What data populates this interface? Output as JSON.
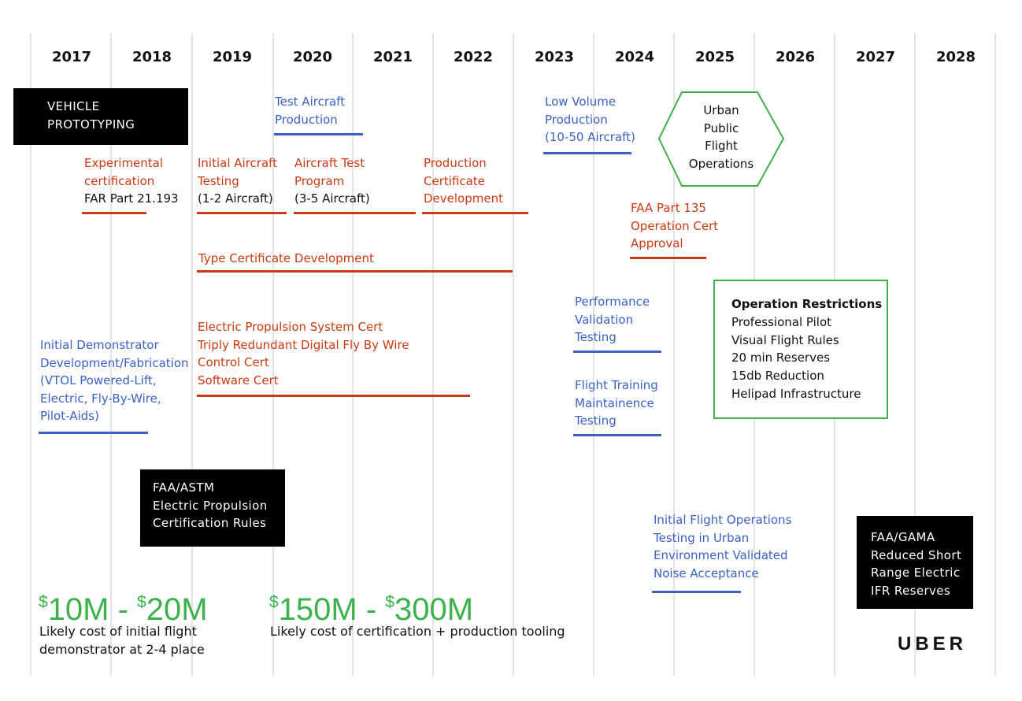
{
  "years": [
    "2017",
    "2018",
    "2019",
    "2020",
    "2021",
    "2022",
    "2023",
    "2024",
    "2025",
    "2026",
    "2027",
    "2028"
  ],
  "vehicle_prototyping": {
    "lines": [
      "VEHICLE",
      "PROTOTYPING"
    ]
  },
  "test_aircraft_production": {
    "lines": [
      "Test Aircraft",
      "Production"
    ]
  },
  "low_volume_production": {
    "lines": [
      "Low Volume",
      "Production",
      "(10-50 Aircraft)"
    ]
  },
  "urban_public_flight": {
    "lines": [
      "Urban",
      "Public",
      "Flight",
      "Operations"
    ]
  },
  "experimental_cert": {
    "lines": [
      "Experimental",
      "certification"
    ],
    "sub": "FAR Part 21.193"
  },
  "initial_aircraft_testing": {
    "lines": [
      "Initial Aircraft",
      "Testing"
    ],
    "sub": "(1-2 Aircraft)"
  },
  "aircraft_test_program": {
    "lines": [
      "Aircraft Test",
      "Program"
    ],
    "sub": "(3-5 Aircraft)"
  },
  "production_cert_dev": {
    "lines": [
      "Production",
      "Certificate",
      "Development"
    ]
  },
  "faa_part_135": {
    "lines": [
      "FAA Part 135",
      "Operation Cert",
      "Approval"
    ]
  },
  "type_cert_dev": {
    "label": "Type Certificate Development"
  },
  "performance_validation": {
    "lines": [
      "Performance",
      "Validation",
      "Testing"
    ]
  },
  "operation_restrictions": {
    "title": "Operation Restrictions",
    "items": [
      "Professional Pilot",
      "Visual Flight Rules",
      "20 min Reserves",
      "15db Reduction",
      "Helipad Infrastructure"
    ]
  },
  "electric_propulsion_cert": {
    "lines": [
      "Electric Propulsion System Cert",
      "Triply Redundant Digital Fly By Wire",
      "Control Cert",
      "Software Cert"
    ]
  },
  "initial_demonstrator": {
    "lines": [
      "Initial Demonstrator",
      "Development/Fabrication",
      "(VTOL Powered-Lift,",
      "Electric, Fly-By-Wire,",
      "Pilot-Aids)"
    ]
  },
  "flight_training": {
    "lines": [
      "Flight Training",
      "Maintainence",
      "Testing"
    ]
  },
  "faa_astm": {
    "lines": [
      "FAA/ASTM",
      "Electric Propulsion",
      "Certification Rules"
    ]
  },
  "initial_flight_ops": {
    "lines": [
      "Initial Flight Operations",
      "Testing in Urban",
      "Environment Validated",
      "Noise Acceptance"
    ]
  },
  "faa_gama": {
    "lines": [
      "FAA/GAMA",
      "Reduced Short",
      "Range Electric",
      "IFR Reserves"
    ]
  },
  "cost_demonstrator": {
    "currency": "$",
    "low": "10M",
    "sep": " - ",
    "high": "20M",
    "desc": [
      "Likely cost of initial flight",
      "demonstrator at 2-4 place"
    ]
  },
  "cost_certification": {
    "currency": "$",
    "low": "150M",
    "sep": " - ",
    "high": "300M",
    "desc": [
      "Likely cost of certification + production tooling"
    ]
  },
  "logo": "UBER",
  "colors": {
    "red": "#cc3a12",
    "blue": "#3b61c4",
    "green": "#3cb34a",
    "black": "#000000"
  }
}
